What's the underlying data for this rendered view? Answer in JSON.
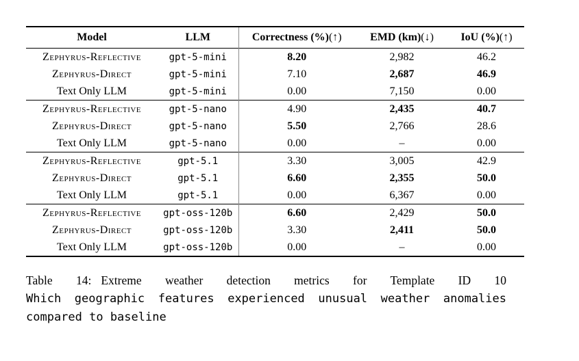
{
  "colors": {
    "background": "#ffffff",
    "text": "#000000",
    "rule": "#000000",
    "column_divider": "#8a8a8a"
  },
  "table": {
    "headers": {
      "model": "Model",
      "llm": "LLM",
      "metrics": [
        {
          "label": "Correctness (%)",
          "direction": "(↑)"
        },
        {
          "label": "EMD (km)",
          "direction": "(↓)"
        },
        {
          "label": "IoU (%)",
          "direction": "(↑)"
        }
      ]
    },
    "groups": [
      {
        "llm": "gpt-5-mini",
        "rows": [
          {
            "model": "Zephyrus-Reflective",
            "llm": "gpt-5-mini",
            "correctness": "8.20",
            "correctness_bold": true,
            "emd": "2,982",
            "emd_bold": false,
            "iou": "46.2",
            "iou_bold": false
          },
          {
            "model": "Zephyrus-Direct",
            "llm": "gpt-5-mini",
            "correctness": "7.10",
            "correctness_bold": false,
            "emd": "2,687",
            "emd_bold": true,
            "iou": "46.9",
            "iou_bold": true
          },
          {
            "model": "Text Only LLM",
            "llm": "gpt-5-mini",
            "correctness": "0.00",
            "correctness_bold": false,
            "emd": "7,150",
            "emd_bold": false,
            "iou": "0.00",
            "iou_bold": false
          }
        ]
      },
      {
        "llm": "gpt-5-nano",
        "rows": [
          {
            "model": "Zephyrus-Reflective",
            "llm": "gpt-5-nano",
            "correctness": "4.90",
            "correctness_bold": false,
            "emd": "2,435",
            "emd_bold": true,
            "iou": "40.7",
            "iou_bold": true
          },
          {
            "model": "Zephyrus-Direct",
            "llm": "gpt-5-nano",
            "correctness": "5.50",
            "correctness_bold": true,
            "emd": "2,766",
            "emd_bold": false,
            "iou": "28.6",
            "iou_bold": false
          },
          {
            "model": "Text Only LLM",
            "llm": "gpt-5-nano",
            "correctness": "0.00",
            "correctness_bold": false,
            "emd": "–",
            "emd_bold": false,
            "iou": "0.00",
            "iou_bold": false
          }
        ]
      },
      {
        "llm": "gpt-5.1",
        "rows": [
          {
            "model": "Zephyrus-Reflective",
            "llm": "gpt-5.1",
            "correctness": "3.30",
            "correctness_bold": false,
            "emd": "3,005",
            "emd_bold": false,
            "iou": "42.9",
            "iou_bold": false
          },
          {
            "model": "Zephyrus-Direct",
            "llm": "gpt-5.1",
            "correctness": "6.60",
            "correctness_bold": true,
            "emd": "2,355",
            "emd_bold": true,
            "iou": "50.0",
            "iou_bold": true
          },
          {
            "model": "Text Only LLM",
            "llm": "gpt-5.1",
            "correctness": "0.00",
            "correctness_bold": false,
            "emd": "6,367",
            "emd_bold": false,
            "iou": "0.00",
            "iou_bold": false
          }
        ]
      },
      {
        "llm": "gpt-oss-120b",
        "rows": [
          {
            "model": "Zephyrus-Reflective",
            "llm": "gpt-oss-120b",
            "correctness": "6.60",
            "correctness_bold": true,
            "emd": "2,429",
            "emd_bold": false,
            "iou": "50.0",
            "iou_bold": true
          },
          {
            "model": "Zephyrus-Direct",
            "llm": "gpt-oss-120b",
            "correctness": "3.30",
            "correctness_bold": false,
            "emd": "2,411",
            "emd_bold": true,
            "iou": "50.0",
            "iou_bold": true
          },
          {
            "model": "Text Only LLM",
            "llm": "gpt-oss-120b",
            "correctness": "0.00",
            "correctness_bold": false,
            "emd": "–",
            "emd_bold": false,
            "iou": "0.00",
            "iou_bold": false
          }
        ]
      }
    ]
  },
  "caption": {
    "label": "Table 14:",
    "line1_text": "Extreme weather detection metrics for Template ID 10",
    "line2": "Which geographic features experienced unusual weather anomalies",
    "line3": "compared to baseline"
  }
}
